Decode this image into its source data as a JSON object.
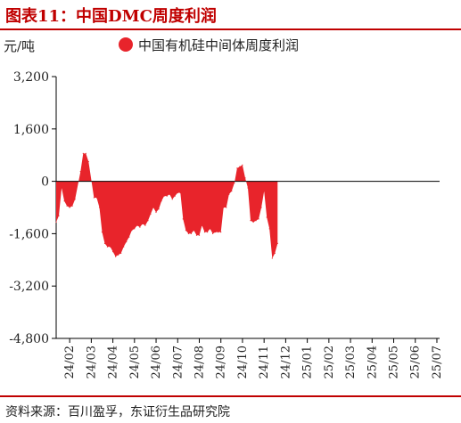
{
  "header": {
    "title": "图表11：中国DMC周度利润"
  },
  "footer": {
    "source": "资料来源：百川盈孚，东证衍生品研究院"
  },
  "colors": {
    "accent": "#c00000",
    "fill": "#e8242b"
  },
  "chart_data": {
    "type": "area",
    "ylabel": "元/吨",
    "ylim": [
      -4800,
      3200
    ],
    "yticks": [
      3200,
      1600,
      0,
      -1600,
      -3200,
      -4800
    ],
    "ytick_labels": [
      "3,200",
      "1,600",
      "0",
      "-1,600",
      "-3,200",
      "-4,800"
    ],
    "x_range": [
      24.03,
      25.35
    ],
    "xticks": [
      {
        "label": "24/02",
        "x": 24.08
      },
      {
        "label": "24/03",
        "x": 24.16
      },
      {
        "label": "24/04",
        "x": 24.24
      },
      {
        "label": "24/05",
        "x": 24.32
      },
      {
        "label": "24/06",
        "x": 24.4
      },
      {
        "label": "24/07",
        "x": 24.48
      },
      {
        "label": "24/08",
        "x": 24.56
      },
      {
        "label": "24/09",
        "x": 24.64
      },
      {
        "label": "24/10",
        "x": 24.72
      },
      {
        "label": "24/11",
        "x": 24.8
      },
      {
        "label": "24/12",
        "x": 24.88
      },
      {
        "label": "25/01",
        "x": 24.96
      },
      {
        "label": "25/02",
        "x": 25.04
      },
      {
        "label": "25/03",
        "x": 25.12
      },
      {
        "label": "25/04",
        "x": 25.2
      },
      {
        "label": "25/05",
        "x": 25.28
      },
      {
        "label": "25/06",
        "x": 25.36
      },
      {
        "label": "25/07",
        "x": 25.44
      }
    ],
    "legend": {
      "position": "top",
      "label": "中国有机硅中间体周度利润"
    },
    "series": [
      {
        "name": "中国有机硅中间体周度利润",
        "points": [
          [
            24.03,
            -1250
          ],
          [
            24.04,
            -1050
          ],
          [
            24.05,
            -200
          ],
          [
            24.06,
            -600
          ],
          [
            24.07,
            -750
          ],
          [
            24.08,
            -800
          ],
          [
            24.09,
            -750
          ],
          [
            24.1,
            -550
          ],
          [
            24.12,
            300
          ],
          [
            24.13,
            850
          ],
          [
            24.14,
            850
          ],
          [
            24.15,
            600
          ],
          [
            24.17,
            -500
          ],
          [
            24.18,
            -500
          ],
          [
            24.19,
            -800
          ],
          [
            24.2,
            -1550
          ],
          [
            24.21,
            -1900
          ],
          [
            24.22,
            -2000
          ],
          [
            24.23,
            -2000
          ],
          [
            24.24,
            -2150
          ],
          [
            24.25,
            -2300
          ],
          [
            24.26,
            -2250
          ],
          [
            24.27,
            -2200
          ],
          [
            24.28,
            -2000
          ],
          [
            24.29,
            -1850
          ],
          [
            24.3,
            -1700
          ],
          [
            24.31,
            -1500
          ],
          [
            24.32,
            -1450
          ],
          [
            24.33,
            -1350
          ],
          [
            24.34,
            -1400
          ],
          [
            24.35,
            -1300
          ],
          [
            24.36,
            -1350
          ],
          [
            24.37,
            -1200
          ],
          [
            24.38,
            -1000
          ],
          [
            24.39,
            -800
          ],
          [
            24.4,
            -950
          ],
          [
            24.41,
            -850
          ],
          [
            24.42,
            -600
          ],
          [
            24.43,
            -450
          ],
          [
            24.44,
            -450
          ],
          [
            24.45,
            -400
          ],
          [
            24.46,
            -550
          ],
          [
            24.47,
            -450
          ],
          [
            24.48,
            -350
          ],
          [
            24.49,
            -350
          ],
          [
            24.5,
            -1150
          ],
          [
            24.51,
            -1500
          ],
          [
            24.52,
            -1600
          ],
          [
            24.53,
            -1600
          ],
          [
            24.54,
            -1500
          ],
          [
            24.55,
            -1650
          ],
          [
            24.56,
            -1650
          ],
          [
            24.57,
            -1350
          ],
          [
            24.58,
            -1550
          ],
          [
            24.59,
            -1550
          ],
          [
            24.6,
            -1450
          ],
          [
            24.61,
            -1600
          ],
          [
            24.62,
            -1550
          ],
          [
            24.63,
            -1550
          ],
          [
            24.64,
            -1550
          ],
          [
            24.65,
            -800
          ],
          [
            24.66,
            -800
          ],
          [
            24.67,
            -400
          ],
          [
            24.68,
            -300
          ],
          [
            24.69,
            -50
          ],
          [
            24.7,
            400
          ],
          [
            24.71,
            450
          ],
          [
            24.72,
            500
          ],
          [
            24.73,
            100
          ],
          [
            24.74,
            -200
          ],
          [
            24.75,
            -1200
          ],
          [
            24.76,
            -1250
          ],
          [
            24.77,
            -1200
          ],
          [
            24.78,
            -1150
          ],
          [
            24.79,
            -800
          ],
          [
            24.8,
            -300
          ],
          [
            24.81,
            -1100
          ],
          [
            24.82,
            -1450
          ],
          [
            24.83,
            -2350
          ],
          [
            24.84,
            -2200
          ],
          [
            24.85,
            -1900
          ]
        ]
      }
    ]
  }
}
